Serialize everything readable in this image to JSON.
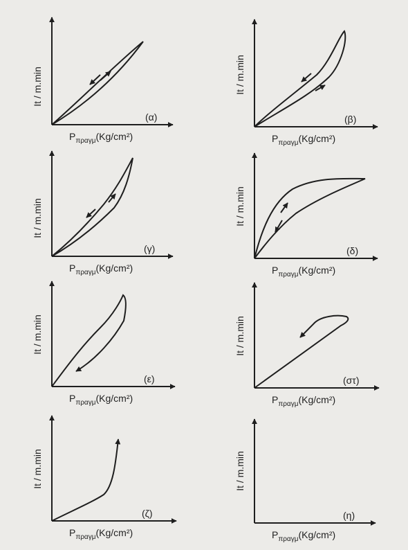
{
  "figure": {
    "background_color": "#ecebe8",
    "ink_color": "#1e1e1e",
    "panels": [
      {
        "id": "alpha",
        "ylabel": "It / m.min",
        "xlabel_main": "P",
        "xlabel_sub": "πραγμ",
        "xlabel_unit": "(Kg/cm²)",
        "tag": "(α)",
        "curve": "narrow-hysteresis-loop-linear"
      },
      {
        "id": "beta",
        "ylabel": "It / m.min",
        "xlabel_main": "P",
        "xlabel_sub": "πραγμ",
        "xlabel_unit": "(Kg/cm²)",
        "tag": "(β)",
        "curve": "wide-hysteresis-loop-upper-right"
      },
      {
        "id": "gamma",
        "ylabel": "It / m.min",
        "xlabel_main": "P",
        "xlabel_sub": "πραγμ",
        "xlabel_unit": "(Kg/cm²)",
        "tag": "(γ)",
        "curve": "narrow-hysteresis-loop-convex"
      },
      {
        "id": "delta",
        "ylabel": "It / m.min",
        "xlabel_main": "P",
        "xlabel_sub": "πραγμ",
        "xlabel_unit": "(Kg/cm²)",
        "tag": "(δ)",
        "curve": "hysteresis-loop-concave"
      },
      {
        "id": "epsilon",
        "ylabel": "It / m.min",
        "xlabel_main": "P",
        "xlabel_sub": "πραγμ",
        "xlabel_unit": "(Kg/cm²)",
        "tag": "(ε)",
        "curve": "loop-with-inward-arrow"
      },
      {
        "id": "st",
        "ylabel": "It / m.min",
        "xlabel_main": "P",
        "xlabel_sub": "πραγμ",
        "xlabel_unit": "(Kg/cm²)",
        "tag": "(στ)",
        "curve": "line-with-hook"
      },
      {
        "id": "zeta",
        "ylabel": "It / m.min",
        "xlabel_main": "P",
        "xlabel_sub": "πραγμ",
        "xlabel_unit": "(Kg/cm²)",
        "tag": "(ζ)",
        "curve": "rising-curve-with-arrow"
      },
      {
        "id": "eta",
        "ylabel": "It / m.min",
        "xlabel_main": "P",
        "xlabel_sub": "πραγμ",
        "xlabel_unit": "(Kg/cm²)",
        "tag": "(η)",
        "curve": "none"
      }
    ]
  }
}
